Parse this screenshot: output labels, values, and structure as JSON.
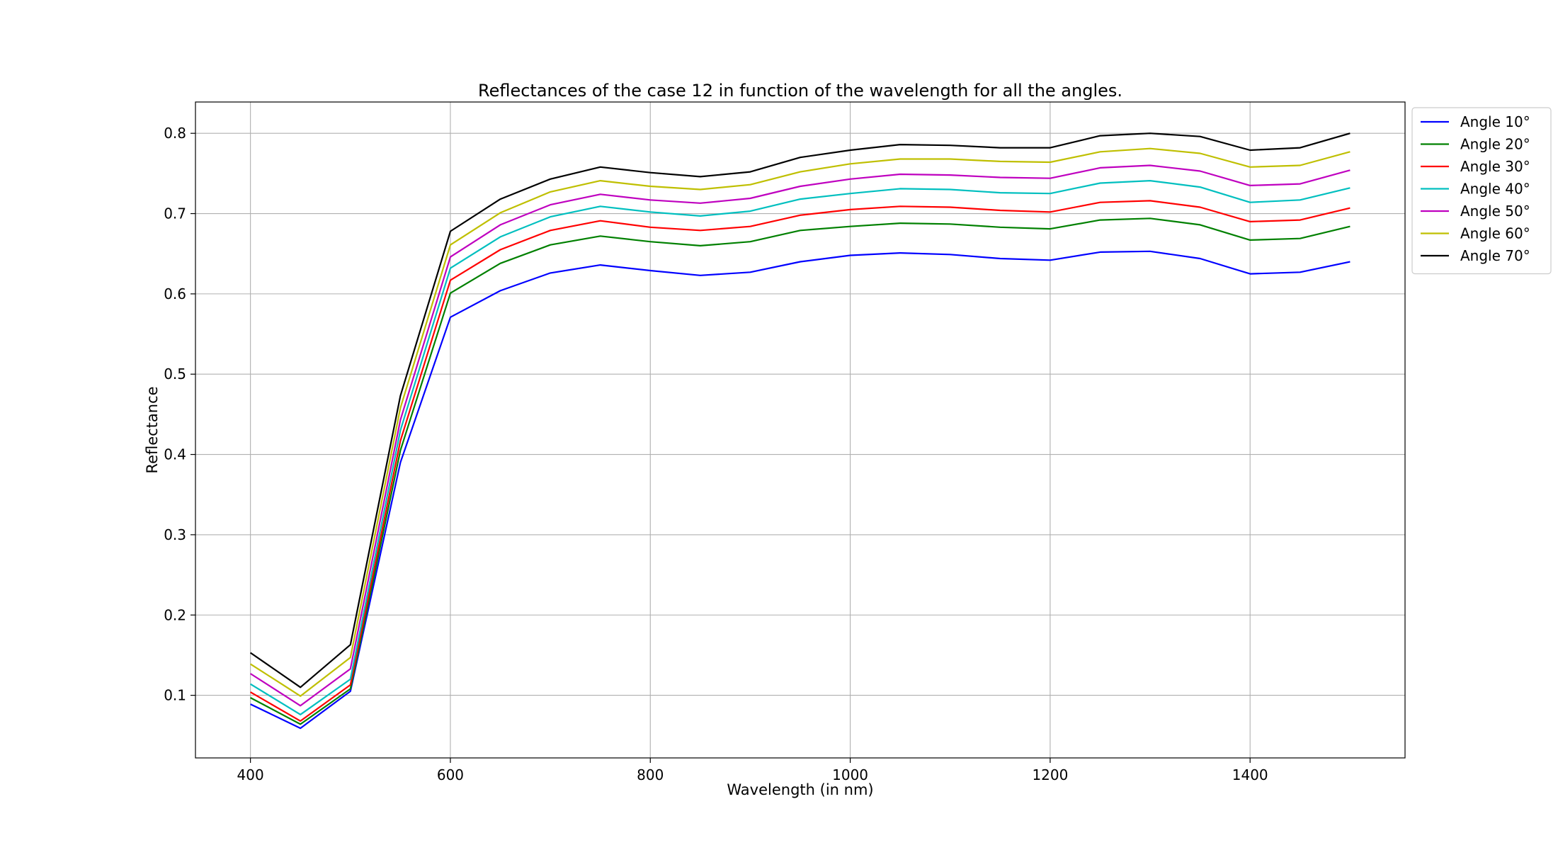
{
  "chart_data": {
    "type": "line",
    "title": "Reflectances of the case 12 in function of the wavelength for all the angles.",
    "xlabel": "Wavelength (in nm)",
    "ylabel": "Reflectance",
    "xlim": [
      345,
      1555
    ],
    "ylim": [
      0.022,
      0.839
    ],
    "xticks": [
      400,
      600,
      800,
      1000,
      1200,
      1400
    ],
    "yticks": [
      0.1,
      0.2,
      0.3,
      0.4,
      0.5,
      0.6,
      0.7,
      0.8
    ],
    "grid": true,
    "legend_position": "outside-top-right",
    "x": [
      400,
      450,
      500,
      550,
      600,
      650,
      700,
      750,
      800,
      850,
      900,
      950,
      1000,
      1050,
      1100,
      1150,
      1200,
      1250,
      1300,
      1350,
      1400,
      1450,
      1500
    ],
    "series": [
      {
        "name": "Angle 10°",
        "color": "#0000ff",
        "values": [
          0.089,
          0.059,
          0.105,
          0.39,
          0.571,
          0.604,
          0.626,
          0.636,
          0.629,
          0.623,
          0.627,
          0.64,
          0.648,
          0.651,
          0.649,
          0.644,
          0.642,
          0.652,
          0.653,
          0.644,
          0.625,
          0.627,
          0.64
        ]
      },
      {
        "name": "Angle 20°",
        "color": "#008000",
        "values": [
          0.097,
          0.064,
          0.108,
          0.405,
          0.601,
          0.638,
          0.661,
          0.672,
          0.665,
          0.66,
          0.665,
          0.679,
          0.684,
          0.688,
          0.687,
          0.683,
          0.681,
          0.692,
          0.694,
          0.686,
          0.667,
          0.669,
          0.684
        ]
      },
      {
        "name": "Angle 30°",
        "color": "#ff0000",
        "values": [
          0.104,
          0.068,
          0.113,
          0.417,
          0.617,
          0.655,
          0.679,
          0.691,
          0.683,
          0.679,
          0.684,
          0.698,
          0.705,
          0.709,
          0.708,
          0.704,
          0.702,
          0.714,
          0.716,
          0.708,
          0.69,
          0.692,
          0.707
        ]
      },
      {
        "name": "Angle 40°",
        "color": "#00bfbf",
        "values": [
          0.114,
          0.076,
          0.12,
          0.43,
          0.632,
          0.671,
          0.696,
          0.709,
          0.702,
          0.697,
          0.703,
          0.718,
          0.725,
          0.731,
          0.73,
          0.726,
          0.725,
          0.738,
          0.741,
          0.733,
          0.714,
          0.717,
          0.732
        ]
      },
      {
        "name": "Angle 50°",
        "color": "#bf00bf",
        "values": [
          0.127,
          0.087,
          0.133,
          0.443,
          0.646,
          0.686,
          0.711,
          0.724,
          0.717,
          0.713,
          0.719,
          0.734,
          0.743,
          0.749,
          0.748,
          0.745,
          0.744,
          0.757,
          0.76,
          0.753,
          0.735,
          0.737,
          0.754
        ]
      },
      {
        "name": "Angle 60°",
        "color": "#bfbf00",
        "values": [
          0.139,
          0.099,
          0.147,
          0.458,
          0.661,
          0.701,
          0.727,
          0.741,
          0.734,
          0.73,
          0.736,
          0.752,
          0.762,
          0.768,
          0.768,
          0.765,
          0.764,
          0.777,
          0.781,
          0.775,
          0.758,
          0.76,
          0.777
        ]
      },
      {
        "name": "Angle 70°",
        "color": "#000000",
        "values": [
          0.153,
          0.11,
          0.163,
          0.473,
          0.678,
          0.718,
          0.743,
          0.758,
          0.751,
          0.746,
          0.752,
          0.77,
          0.779,
          0.786,
          0.785,
          0.782,
          0.782,
          0.797,
          0.8,
          0.796,
          0.779,
          0.782,
          0.8
        ]
      }
    ]
  }
}
